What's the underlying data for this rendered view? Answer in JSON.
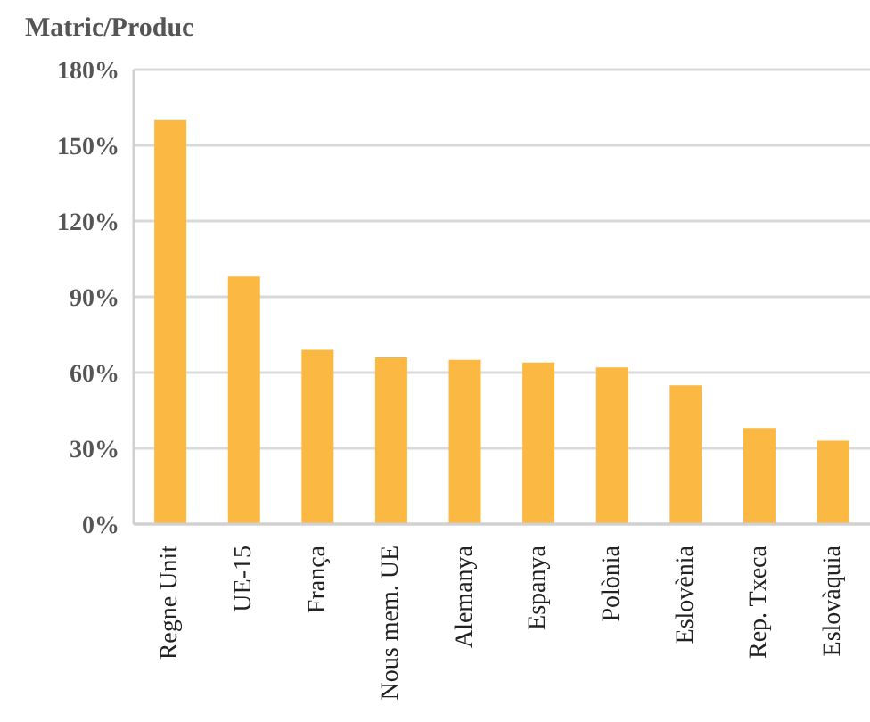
{
  "chart_data": {
    "type": "bar",
    "title": "Matric/Produc",
    "categories": [
      "Regne Unit",
      "UE-15",
      "França",
      "Nous mem. UE",
      "Alemanya",
      "Espanya",
      "Polònia",
      "Eslovènia",
      "Rep. Txeca",
      "Eslovàquia"
    ],
    "values": [
      160,
      98,
      69,
      66,
      65,
      64,
      62,
      55,
      38,
      33
    ],
    "color": "#fbb843",
    "ylim": [
      0,
      180
    ],
    "yticks": [
      {
        "value": 0,
        "label": "0%"
      },
      {
        "value": 30,
        "label": "30%"
      },
      {
        "value": 60,
        "label": "60%"
      },
      {
        "value": 90,
        "label": "90%"
      },
      {
        "value": 120,
        "label": "120%"
      },
      {
        "value": 150,
        "label": "150%"
      },
      {
        "value": 180,
        "label": "180%"
      }
    ],
    "grid": "y"
  }
}
